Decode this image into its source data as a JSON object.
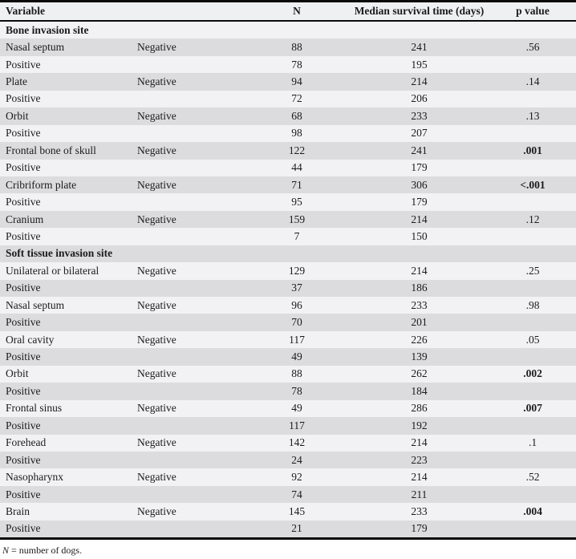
{
  "table": {
    "columns": {
      "variable": "Variable",
      "status": "",
      "n": "N",
      "median": "Median survival time (days)",
      "p": "p value"
    },
    "sections": [
      {
        "title": "Bone invasion site",
        "variables": [
          {
            "name": "Nasal septum",
            "negative": {
              "label": "Negative",
              "n": "88",
              "median": "241"
            },
            "positive": {
              "label": "Positive",
              "n": "78",
              "median": "195"
            },
            "p": ".56",
            "p_significant": false
          },
          {
            "name": "Plate",
            "negative": {
              "label": "Negative",
              "n": "94",
              "median": "214"
            },
            "positive": {
              "label": "Positive",
              "n": "72",
              "median": "206"
            },
            "p": ".14",
            "p_significant": false
          },
          {
            "name": "Orbit",
            "negative": {
              "label": "Negative",
              "n": "68",
              "median": "233"
            },
            "positive": {
              "label": "Positive",
              "n": "98",
              "median": "207"
            },
            "p": ".13",
            "p_significant": false
          },
          {
            "name": "Frontal bone of skull",
            "negative": {
              "label": "Negative",
              "n": "122",
              "median": "241"
            },
            "positive": {
              "label": "Positive",
              "n": "44",
              "median": "179"
            },
            "p": ".001",
            "p_significant": true
          },
          {
            "name": "Cribriform plate",
            "negative": {
              "label": "Negative",
              "n": "71",
              "median": "306"
            },
            "positive": {
              "label": "Positive",
              "n": "95",
              "median": "179"
            },
            "p": "<.001",
            "p_significant": true
          },
          {
            "name": "Cranium",
            "negative": {
              "label": "Negative",
              "n": "159",
              "median": "214"
            },
            "positive": {
              "label": "Positive",
              "n": "7",
              "median": "150"
            },
            "p": ".12",
            "p_significant": false
          }
        ]
      },
      {
        "title": "Soft tissue invasion site",
        "variables": [
          {
            "name": "Unilateral or bilateral",
            "negative": {
              "label": "Negative",
              "n": "129",
              "median": "214"
            },
            "positive": {
              "label": "Positive",
              "n": "37",
              "median": "186"
            },
            "p": ".25",
            "p_significant": false
          },
          {
            "name": "Nasal septum",
            "negative": {
              "label": "Negative",
              "n": "96",
              "median": "233"
            },
            "positive": {
              "label": "Positive",
              "n": "70",
              "median": "201"
            },
            "p": ".98",
            "p_significant": false
          },
          {
            "name": "Oral cavity",
            "negative": {
              "label": "Negative",
              "n": "117",
              "median": "226"
            },
            "positive": {
              "label": "Positive",
              "n": "49",
              "median": "139"
            },
            "p": ".05",
            "p_significant": false
          },
          {
            "name": "Orbit",
            "negative": {
              "label": "Negative",
              "n": "88",
              "median": "262"
            },
            "positive": {
              "label": "Positive",
              "n": "78",
              "median": "184"
            },
            "p": ".002",
            "p_significant": true
          },
          {
            "name": "Frontal sinus",
            "negative": {
              "label": "Negative",
              "n": "49",
              "median": "286"
            },
            "positive": {
              "label": "Positive",
              "n": "117",
              "median": "192"
            },
            "p": ".007",
            "p_significant": true
          },
          {
            "name": "Forehead",
            "negative": {
              "label": "Negative",
              "n": "142",
              "median": "214"
            },
            "positive": {
              "label": "Positive",
              "n": "24",
              "median": "223"
            },
            "p": ".1",
            "p_significant": false
          },
          {
            "name": "Nasopharynx",
            "negative": {
              "label": "Negative",
              "n": "92",
              "median": "214"
            },
            "positive": {
              "label": "Positive",
              "n": "74",
              "median": "211"
            },
            "p": ".52",
            "p_significant": false
          },
          {
            "name": "Brain",
            "negative": {
              "label": "Negative",
              "n": "145",
              "median": "233"
            },
            "positive": {
              "label": "Positive",
              "n": "21",
              "median": "179"
            },
            "p": ".004",
            "p_significant": true
          }
        ]
      }
    ],
    "footnote": {
      "italic": "N",
      "rest": " = number of dogs."
    }
  },
  "colors": {
    "row_shaded": "#dcdcde",
    "row_light": "#f2f2f4",
    "header_bg": "#eff0f2",
    "border": "#0a0a0a"
  }
}
